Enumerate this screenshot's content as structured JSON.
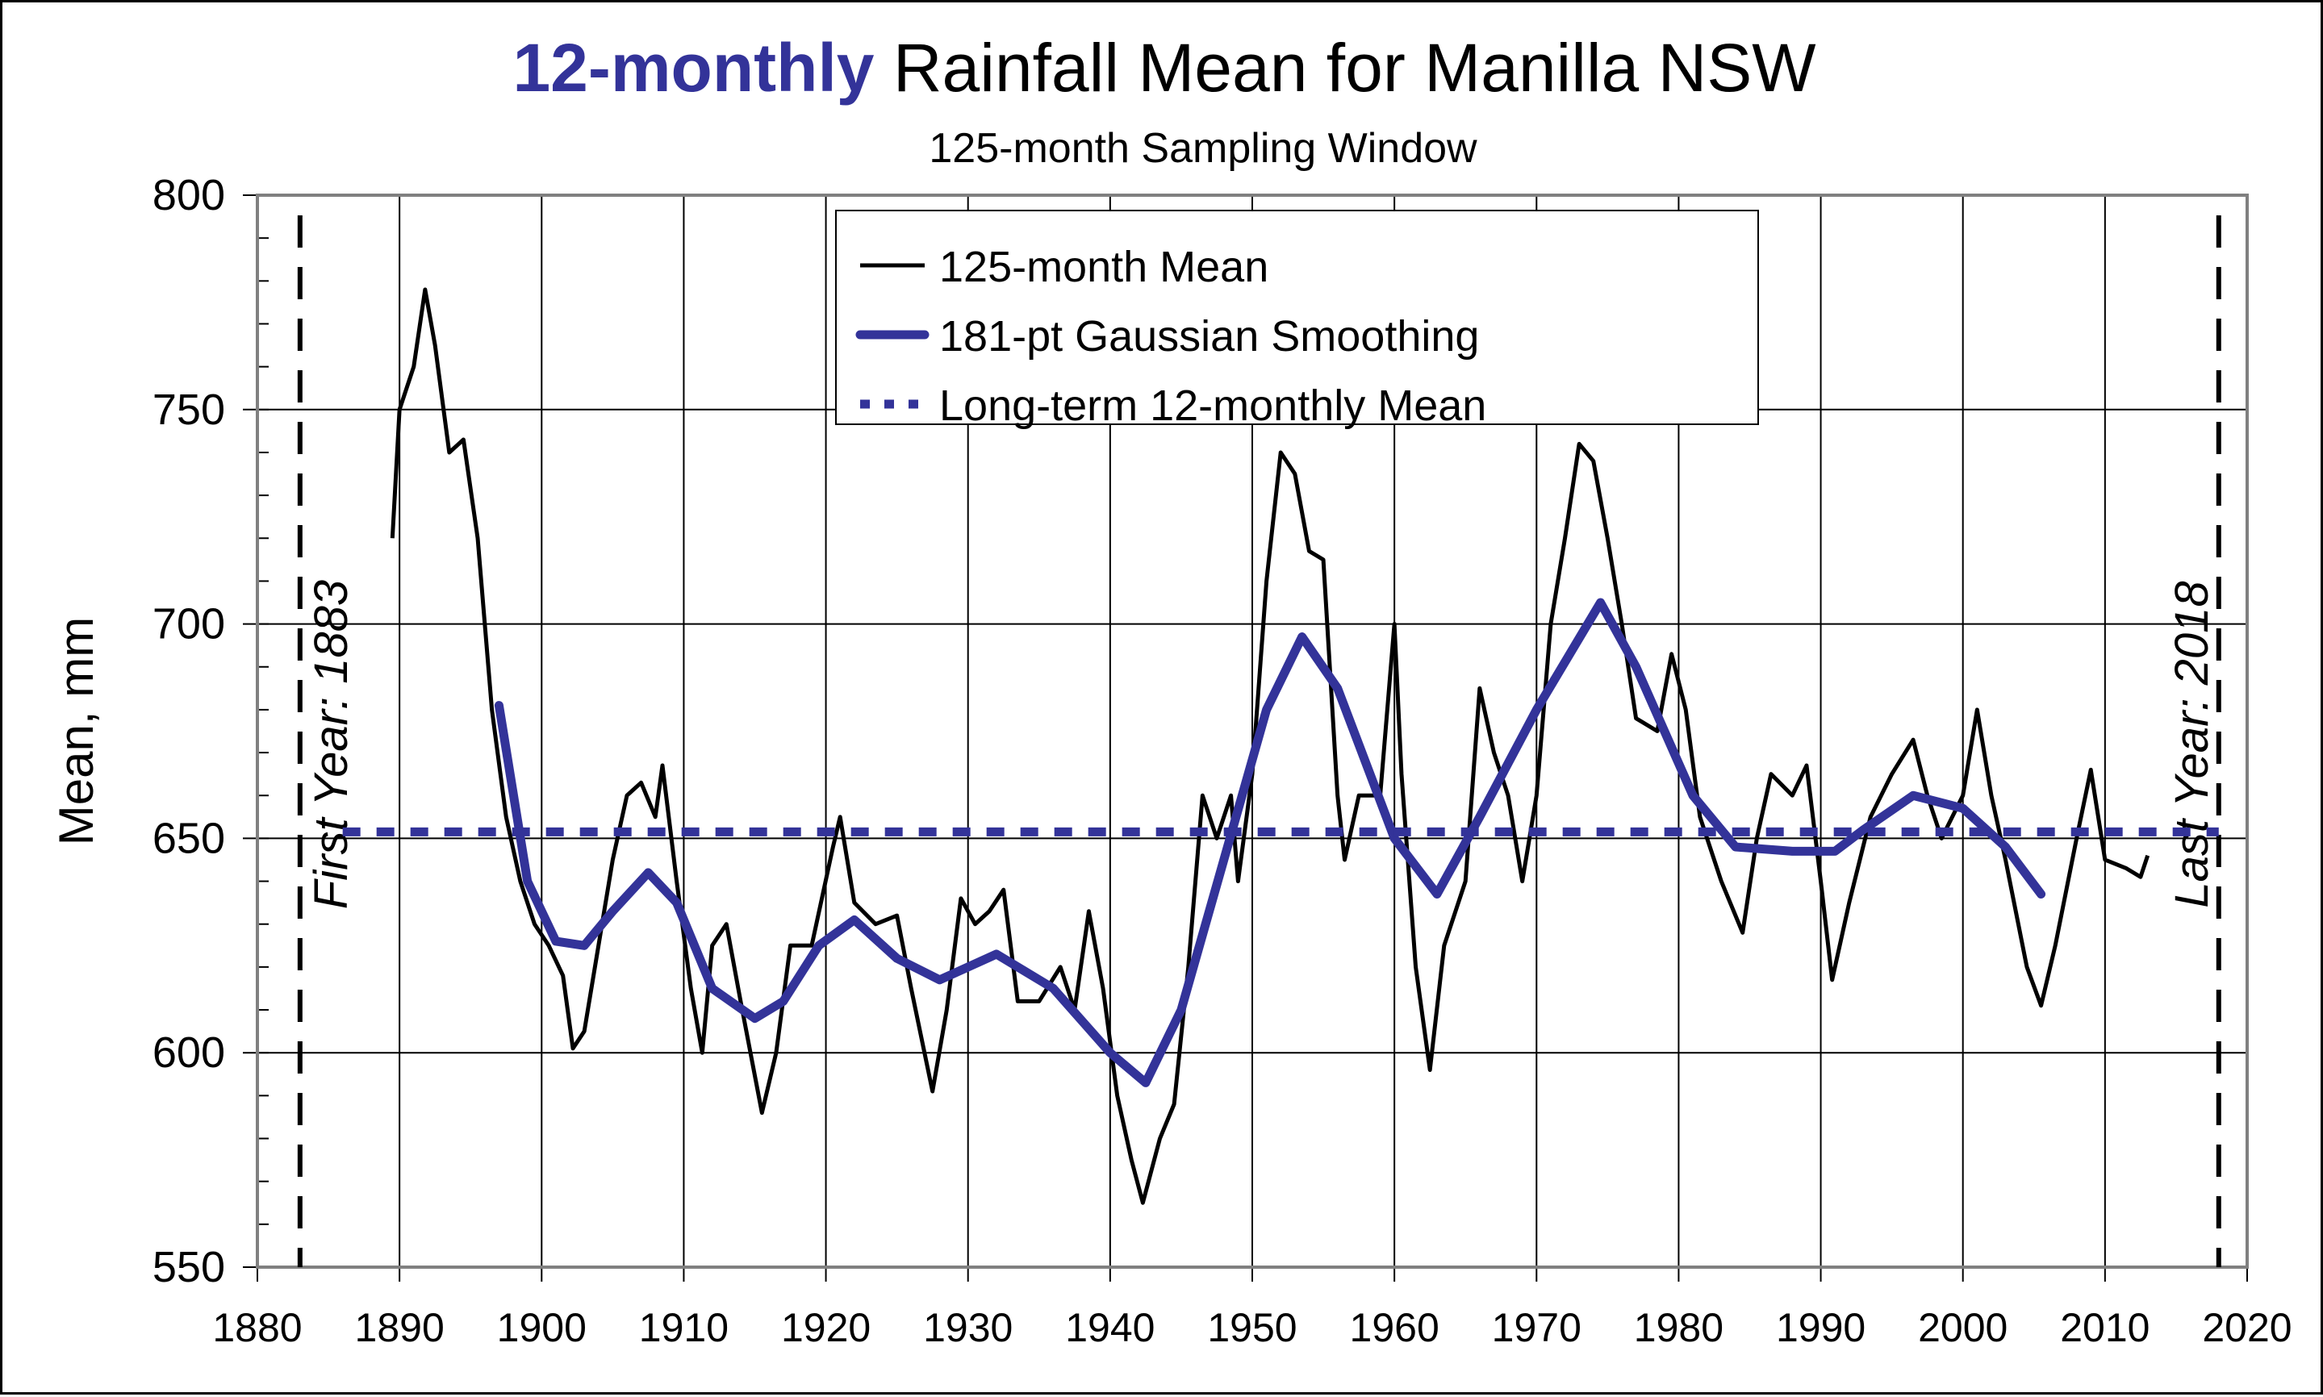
{
  "chart_data": {
    "type": "line",
    "title_highlight": "12-monthly",
    "title_rest": " Rainfall Mean for Manilla NSW",
    "subtitle": "125-month Sampling Window",
    "xlabel": "",
    "ylabel": "Mean, mm",
    "xlim": [
      1880,
      2020
    ],
    "ylim": [
      550,
      800
    ],
    "x_ticks": [
      1880,
      1890,
      1900,
      1910,
      1920,
      1930,
      1940,
      1950,
      1960,
      1970,
      1980,
      1990,
      2000,
      2010,
      2020
    ],
    "y_ticks": [
      550,
      600,
      650,
      700,
      750,
      800
    ],
    "y_minor_step": 10,
    "grid": true,
    "legend_position": "top-center",
    "colors": {
      "raw": "#000000",
      "smooth": "#333399",
      "mean": "#333399"
    },
    "annotations": [
      {
        "label": "First Year: 1883",
        "x": 1883
      },
      {
        "label": "Last Year: 2018",
        "x": 2018
      }
    ],
    "series": [
      {
        "name": "125-month Mean",
        "style": "solid-thin",
        "x": [
          1889.5,
          1890,
          1891,
          1891.8,
          1892.5,
          1893.5,
          1894.5,
          1895.5,
          1896.5,
          1897.5,
          1898.5,
          1899.5,
          1900.5,
          1901.5,
          1902.2,
          1903,
          1904,
          1905,
          1906,
          1907,
          1908,
          1908.5,
          1909.5,
          1910.5,
          1911.3,
          1912,
          1913,
          1914,
          1915.5,
          1916.5,
          1917.5,
          1919,
          1920.5,
          1921,
          1922,
          1923.5,
          1925,
          1926,
          1927.5,
          1928.5,
          1929.5,
          1930.5,
          1931.5,
          1932.5,
          1933.5,
          1935,
          1936.5,
          1937.5,
          1938.5,
          1939.5,
          1940.5,
          1941.5,
          1942.3,
          1943.5,
          1944.5,
          1945.5,
          1946.5,
          1947.5,
          1948.5,
          1949,
          1950,
          1951,
          1952,
          1953,
          1954,
          1955,
          1956,
          1956.5,
          1957.5,
          1959,
          1960,
          1960.5,
          1961.5,
          1962.5,
          1963.5,
          1965,
          1966,
          1967,
          1968,
          1969,
          1970,
          1971,
          1972,
          1973,
          1974,
          1975,
          1976,
          1977,
          1978.5,
          1979.5,
          1980.5,
          1981.5,
          1983,
          1984.5,
          1985.5,
          1986.5,
          1988,
          1989,
          1990,
          1990.8,
          1992,
          1993.5,
          1995,
          1996.5,
          1997.5,
          1998.5,
          2000,
          2001,
          2002,
          2003,
          2004.5,
          2005.5,
          2006.5,
          2008,
          2009,
          2010,
          2011.5,
          2012.5,
          2013
        ],
        "values": [
          720,
          750,
          760,
          778,
          765,
          740,
          743,
          720,
          680,
          655,
          640,
          630,
          625,
          618,
          601,
          605,
          625,
          645,
          660,
          663,
          655,
          667,
          640,
          615,
          600,
          625,
          630,
          612,
          586,
          600,
          625,
          625,
          648,
          655,
          635,
          630,
          632,
          615,
          591,
          610,
          636,
          630,
          633,
          638,
          612,
          612,
          620,
          610,
          633,
          615,
          590,
          575,
          565,
          580,
          588,
          620,
          660,
          650,
          660,
          640,
          665,
          710,
          740,
          735,
          717,
          715,
          660,
          645,
          660,
          660,
          700,
          665,
          620,
          596,
          625,
          640,
          685,
          670,
          660,
          640,
          660,
          700,
          720,
          742,
          738,
          720,
          700,
          678,
          675,
          693,
          680,
          655,
          640,
          628,
          650,
          665,
          660,
          667,
          640,
          617,
          635,
          655,
          665,
          673,
          660,
          650,
          660,
          680,
          660,
          645,
          620,
          611,
          625,
          650,
          666,
          645,
          643,
          641,
          646
        ]
      },
      {
        "name": "181-pt Gaussian Smoothing",
        "style": "solid-thick",
        "x": [
          1897,
          1899,
          1901,
          1903,
          1905,
          1907.5,
          1909.5,
          1912,
          1915,
          1917,
          1919.5,
          1922,
          1925,
          1928,
          1932,
          1936,
          1940,
          1942.5,
          1945,
          1948,
          1951,
          1953.5,
          1956,
          1960,
          1963,
          1966,
          1970,
          1974.5,
          1977,
          1981,
          1984,
          1988,
          1991,
          1993,
          1996.5,
          2000,
          2003,
          2005.5
        ],
        "values": [
          681,
          640,
          626,
          625,
          633,
          642,
          635,
          615,
          608,
          612,
          625,
          631,
          622,
          617,
          623,
          615,
          600,
          593,
          610,
          645,
          680,
          697,
          685,
          650,
          637,
          655,
          680,
          705,
          690,
          660,
          648,
          647,
          647,
          652,
          660,
          657,
          648,
          637
        ]
      },
      {
        "name": "Long-term 12-monthly Mean",
        "style": "dotted",
        "x": [
          1886,
          2018
        ],
        "values": [
          651.5,
          651.5
        ]
      }
    ]
  }
}
